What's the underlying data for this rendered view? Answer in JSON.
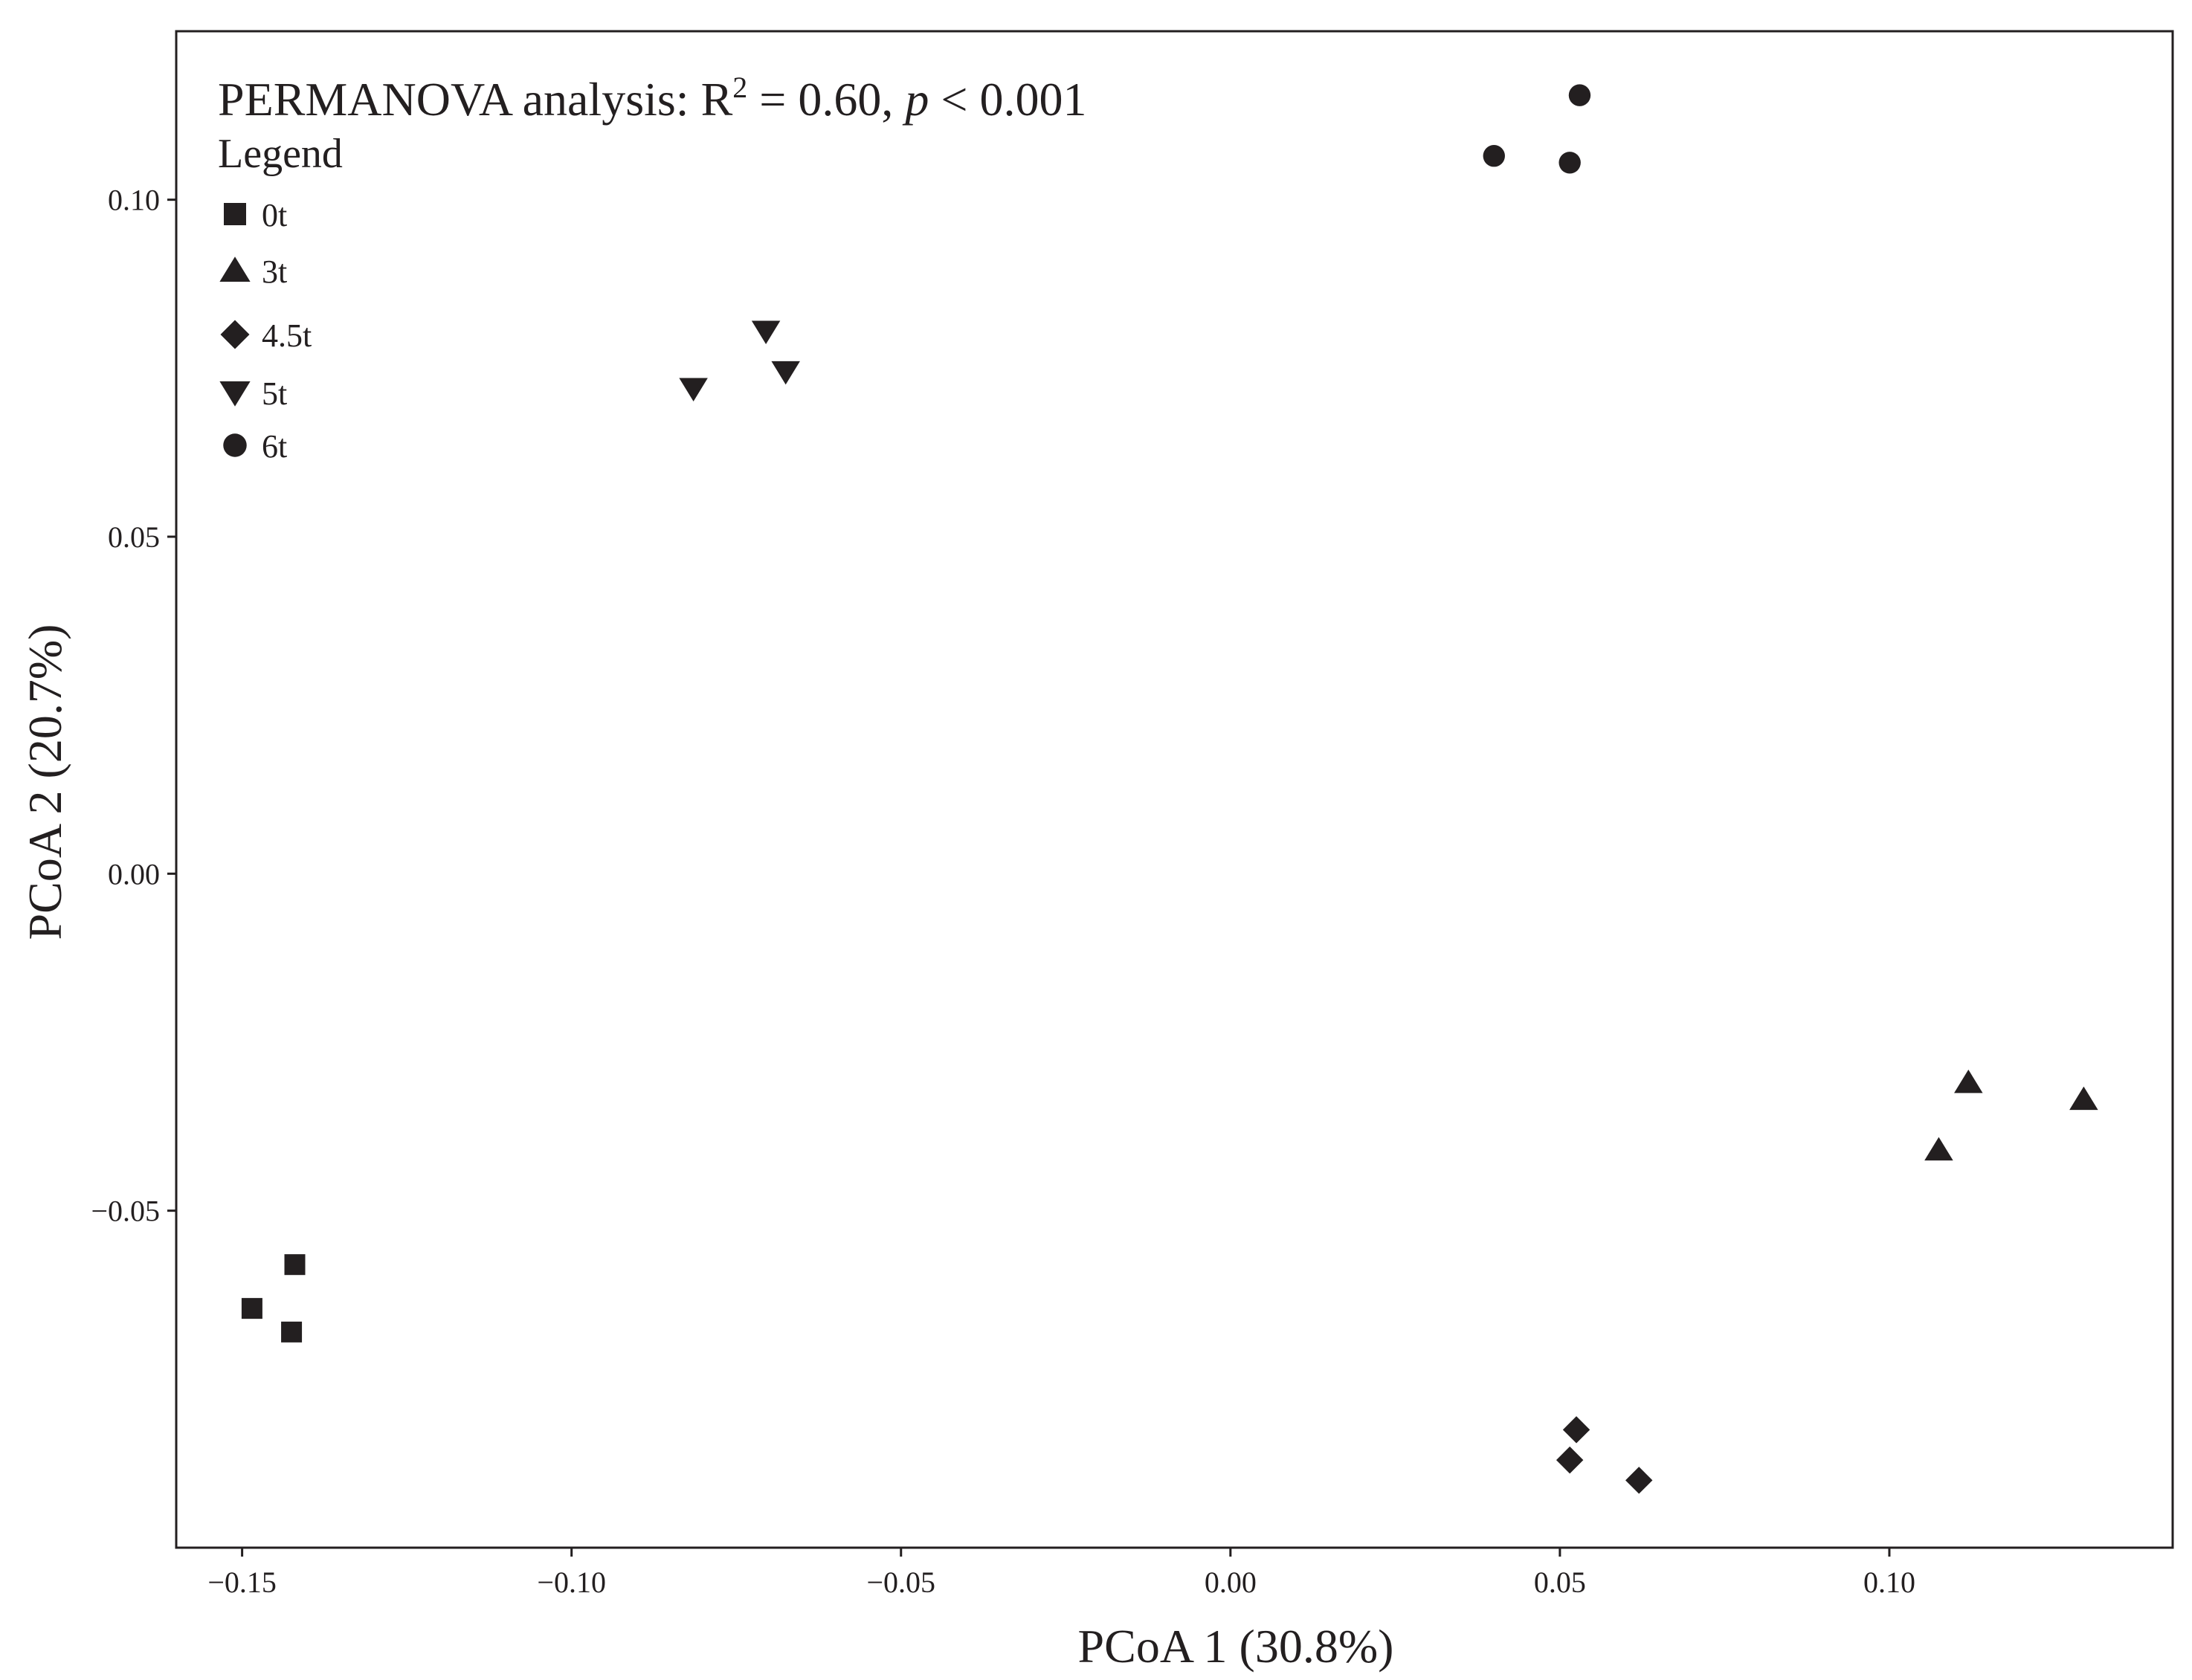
{
  "chart_data": {
    "type": "scatter",
    "xlabel": "PCoA 1 (30.8%)",
    "ylabel": "PCoA 2 (20.7%)",
    "xlim": [
      -0.16,
      0.143
    ],
    "ylim": [
      -0.1,
      0.125
    ],
    "x_ticks": [
      {
        "value": -0.15,
        "label": "−0.15"
      },
      {
        "value": -0.1,
        "label": "−0.10"
      },
      {
        "value": -0.05,
        "label": "−0.05"
      },
      {
        "value": 0.0,
        "label": "0.00"
      },
      {
        "value": 0.05,
        "label": "0.05"
      },
      {
        "value": 0.1,
        "label": "0.10"
      }
    ],
    "y_ticks": [
      {
        "value": -0.05,
        "label": "−0.05"
      },
      {
        "value": 0.0,
        "label": "0.00"
      },
      {
        "value": 0.05,
        "label": "0.05"
      },
      {
        "value": 0.1,
        "label": "0.10"
      }
    ],
    "grid": false,
    "annotation": {
      "prefix": "PERMANOVA analysis: R",
      "superscript": "2",
      "middle": " = 0.60, ",
      "italic": "p",
      "suffix": " < 0.001"
    },
    "legend": {
      "title": "Legend",
      "position": "top-left"
    },
    "marker_color": "#231f20",
    "series": [
      {
        "name": "0t",
        "marker": "square",
        "points": [
          [
            -0.142,
            -0.058
          ],
          [
            -0.1485,
            -0.0645
          ],
          [
            -0.1425,
            -0.068
          ]
        ]
      },
      {
        "name": "3t",
        "marker": "triangle-up",
        "points": [
          [
            0.112,
            -0.031
          ],
          [
            0.1295,
            -0.0335
          ],
          [
            0.1075,
            -0.041
          ]
        ]
      },
      {
        "name": "4.5t",
        "marker": "diamond",
        "points": [
          [
            0.0525,
            -0.0825
          ],
          [
            0.0515,
            -0.087
          ],
          [
            0.062,
            -0.09
          ]
        ]
      },
      {
        "name": "5t",
        "marker": "triangle-down",
        "points": [
          [
            -0.0705,
            0.0805
          ],
          [
            -0.0675,
            0.0745
          ],
          [
            -0.0815,
            0.072
          ]
        ]
      },
      {
        "name": "6t",
        "marker": "circle",
        "points": [
          [
            0.053,
            0.1155
          ],
          [
            0.04,
            0.1065
          ],
          [
            0.0515,
            0.1055
          ]
        ]
      }
    ]
  }
}
